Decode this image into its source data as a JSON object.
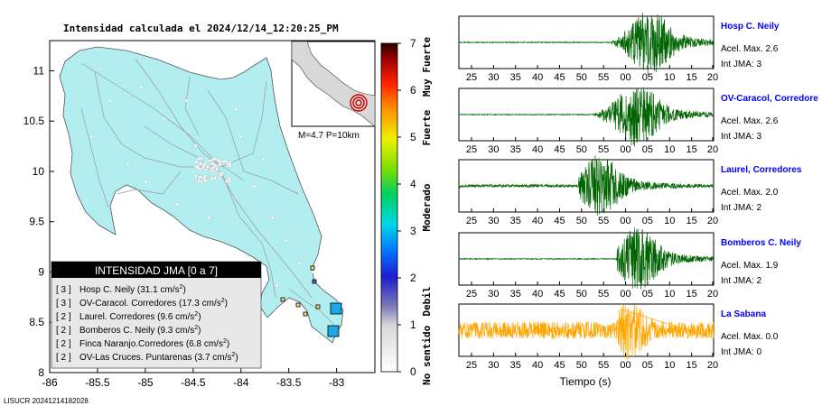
{
  "title": "Intensidad calculada el 2024/12/14_12:20:25_PM",
  "footer_id": "LISUCR 20241214182028",
  "map": {
    "lon_ticks": [
      "-86",
      "-85.5",
      "-85",
      "-84.5",
      "-84",
      "-83.5",
      "-83"
    ],
    "lat_ticks": [
      "11",
      "10.5",
      "10",
      "9.5",
      "9",
      "8.5",
      "8"
    ],
    "lon_range": [
      -86,
      -82.6
    ],
    "lat_range": [
      8.0,
      11.3
    ],
    "land_color": "#b2eef0",
    "inset_label": "M=4.7 P=10km",
    "epicenter": {
      "lon": -82.95,
      "lat": 8.35
    },
    "legend": {
      "title": "INTENSIDAD JMA [0 a 7]",
      "items": [
        {
          "intensity": "[ 3 ]",
          "label": "Hosp C. Neily (31.1 cm/s",
          "sup": "2",
          "close": ")"
        },
        {
          "intensity": "[ 3 ]",
          "label": "OV-Caracol. Corredores (17.3 cm/s",
          "sup": "2",
          "close": ")"
        },
        {
          "intensity": "[ 2 ]",
          "label": "Laurel. Corredores (9.6 cm/s",
          "sup": "2",
          "close": ")"
        },
        {
          "intensity": "[ 2 ]",
          "label": "Bomberos C. Neily (9.3 cm/s",
          "sup": "2",
          "close": ")"
        },
        {
          "intensity": "[ 2 ]",
          "label": "Finca Naranjo.Corredores (6.8 cm/s",
          "sup": "2",
          "close": ")"
        },
        {
          "intensity": "[ 2 ]",
          "label": "OV-Las Cruces. Puntarenas (3.7 cm/s",
          "sup": "2",
          "close": ")"
        }
      ]
    }
  },
  "colorbar": {
    "ticks": [
      "0",
      "1",
      "2",
      "3",
      "4",
      "5",
      "6",
      "7"
    ],
    "labels": [
      "No sentido",
      "Debil",
      "Moderado",
      "Fuerte",
      "Muy Fuerte"
    ]
  },
  "chart_data": {
    "type": "line",
    "xlabel": "Tiempo (s)",
    "traces": [
      {
        "name": "Hosp C. Neily",
        "accel_label": "Acel. Max. 2.6",
        "int_label": "Int JMA: 3",
        "ticks": [
          "25",
          "30",
          "35",
          "40",
          "45",
          "50",
          "55",
          "00",
          "05",
          "10",
          "15",
          "20"
        ],
        "color": "#006400",
        "onset": 0.6,
        "peak": 0.75,
        "noise": 0.02,
        "amp": 1.0
      },
      {
        "name": "OV-Caracol, Corredore",
        "accel_label": "Acel. Max. 2.6",
        "int_label": "Int JMA: 3",
        "ticks": [
          "25",
          "30",
          "35",
          "40",
          "45",
          "50",
          "55",
          "00",
          "05",
          "10",
          "15",
          "20"
        ],
        "color": "#006400",
        "onset": 0.53,
        "peak": 0.7,
        "noise": 0.02,
        "amp": 1.0
      },
      {
        "name": "Laurel, Corredores",
        "accel_label": "Acel. Max. 2.0",
        "int_label": "Int JMA: 2",
        "ticks": [
          "25",
          "30",
          "35",
          "40",
          "45",
          "50",
          "55",
          "00",
          "05",
          "10",
          "15",
          "20"
        ],
        "color": "#006400",
        "onset": 0.47,
        "peak": 0.55,
        "noise": 0.06,
        "amp": 1.0
      },
      {
        "name": "Bomberos C. Neily",
        "accel_label": "Acel. Max. 1.9",
        "int_label": "Int JMA: 2",
        "ticks": [
          "25",
          "30",
          "35",
          "40",
          "45",
          "50",
          "55",
          "00",
          "05",
          "10",
          "15",
          "20"
        ],
        "color": "#006400",
        "onset": 0.62,
        "peak": 0.7,
        "noise": 0.02,
        "amp": 1.0
      },
      {
        "name": "La Sabana",
        "accel_label": "Acel. Max. 0.0",
        "int_label": "Int JMA: 0",
        "ticks": [
          "25",
          "30",
          "35",
          "40",
          "45",
          "50",
          "55",
          "00",
          "05",
          "10",
          "15",
          "20"
        ],
        "color": "#ffa500",
        "onset": 0.62,
        "peak": 0.66,
        "noise": 0.35,
        "amp": 0.9
      }
    ]
  }
}
